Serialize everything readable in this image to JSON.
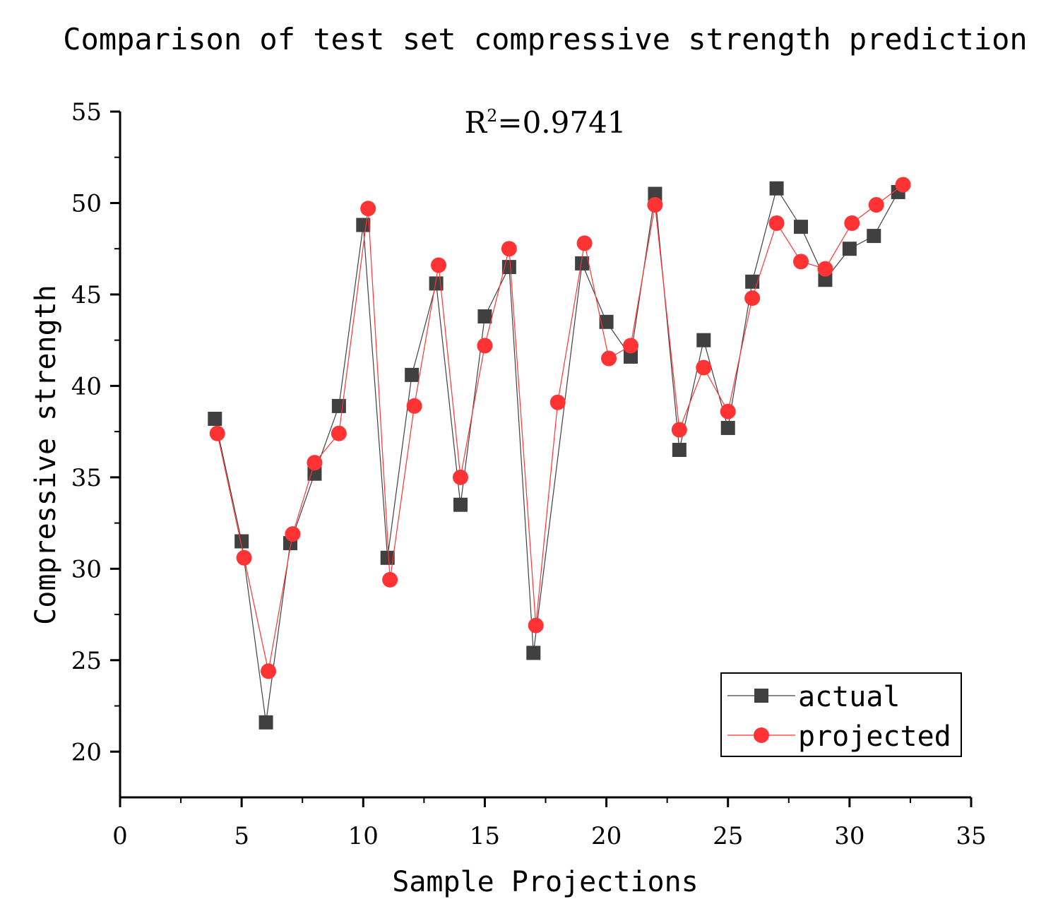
{
  "chart_data": {
    "type": "line",
    "title": "Comparison of test set compressive strength prediction",
    "xlabel": "Sample Projections",
    "ylabel": "Compressive strength",
    "xlim": [
      0,
      35
    ],
    "ylim": [
      17.5,
      55
    ],
    "xticks": [
      0,
      5,
      10,
      15,
      20,
      25,
      30,
      35
    ],
    "yticks": [
      20,
      25,
      30,
      35,
      40,
      45,
      50,
      55
    ],
    "annotation": {
      "base": "R",
      "sup": "2",
      "rest": "=0.9741"
    },
    "legend_position": "bottom-right",
    "series": [
      {
        "name": "actual",
        "color": "#404040",
        "marker": "square",
        "x": [
          3.9,
          5.0,
          6.0,
          7.0,
          8.0,
          9.0,
          10.0,
          11.0,
          12.0,
          13.0,
          14.0,
          15.0,
          16.0,
          17.0,
          19.0,
          20.0,
          21.0,
          22.0,
          23.0,
          24.0,
          25.0,
          26.0,
          27.0,
          28.0,
          29.0,
          30.0,
          31.0,
          32.0
        ],
        "values": [
          38.2,
          31.5,
          21.6,
          31.4,
          35.2,
          38.9,
          48.8,
          30.6,
          40.6,
          45.6,
          33.5,
          43.8,
          46.5,
          25.4,
          46.7,
          43.5,
          41.6,
          50.5,
          36.5,
          42.5,
          37.7,
          45.7,
          50.8,
          48.7,
          45.8,
          47.5,
          48.2,
          50.6
        ]
      },
      {
        "name": "projected",
        "color": "#ff3333",
        "marker": "circle",
        "x": [
          4.0,
          5.1,
          6.1,
          7.1,
          8.0,
          9.0,
          10.2,
          11.1,
          12.1,
          13.1,
          14.0,
          15.0,
          16.0,
          17.1,
          18.0,
          19.1,
          20.1,
          21.0,
          22.0,
          23.0,
          24.0,
          25.0,
          26.0,
          27.0,
          28.0,
          29.0,
          30.1,
          31.1,
          32.2
        ],
        "values": [
          37.4,
          30.6,
          24.4,
          31.9,
          35.8,
          37.4,
          49.7,
          29.4,
          38.9,
          46.6,
          35.0,
          42.2,
          47.5,
          26.9,
          39.1,
          47.8,
          41.5,
          42.2,
          49.9,
          37.6,
          41.0,
          38.6,
          44.8,
          48.9,
          46.8,
          46.4,
          48.9,
          49.9,
          51.0
        ]
      }
    ]
  }
}
